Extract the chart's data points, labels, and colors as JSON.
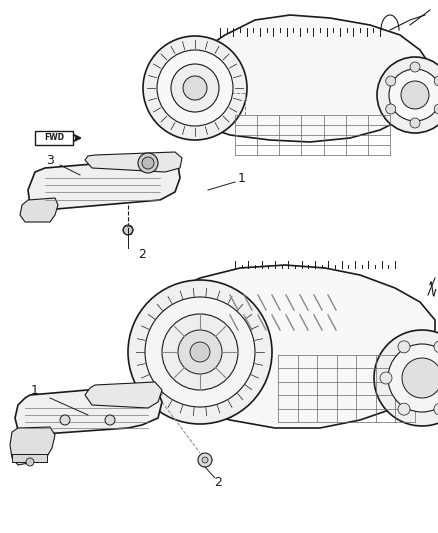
{
  "background_color": "#ffffff",
  "fig_width": 4.38,
  "fig_height": 5.33,
  "dpi": 100,
  "line_color": "#1a1a1a",
  "grid_color": "#444444",
  "fill_color": "#ffffff",
  "label_fontsize": 9,
  "fwd_text": "FWD"
}
